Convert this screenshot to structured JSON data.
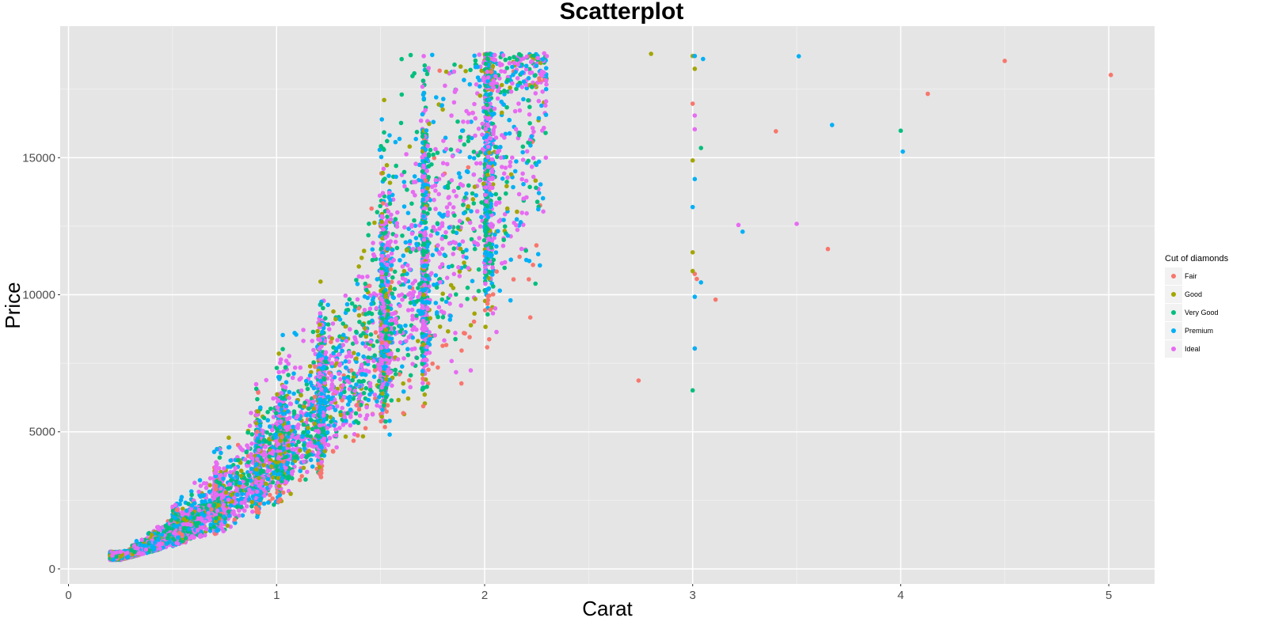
{
  "chart_data": {
    "type": "scatter",
    "title": "Scatterplot",
    "xlabel": "Carat",
    "ylabel": "Price",
    "xlim": [
      -0.04,
      5.22
    ],
    "ylim": [
      -550,
      19800
    ],
    "x_ticks": [
      0,
      1,
      2,
      3,
      4,
      5
    ],
    "y_ticks": [
      0,
      5000,
      10000,
      15000
    ],
    "grid": true,
    "legend": {
      "title": "Cut of diamonds",
      "position": "right",
      "entries": [
        {
          "label": "Fair",
          "color": "#F8766D"
        },
        {
          "label": "Good",
          "color": "#A3A500"
        },
        {
          "label": "Very Good",
          "color": "#00BF7D"
        },
        {
          "label": "Premium",
          "color": "#00B0F6"
        },
        {
          "label": "Ideal",
          "color": "#E76BF3"
        }
      ]
    },
    "series_description": "Diamond price vs carat (~54k points); dense cloud from 0.2 to ~2.3 carat with vertical bands at 0.3, 0.5, 0.7, 0.9, 1.0, 1.2, 1.5, 1.7, 2.0 carats; prices from ~330 to ~18800.",
    "outliers": [
      {
        "cut": "Fair",
        "x": 5.01,
        "y": 18018
      },
      {
        "cut": "Fair",
        "x": 4.5,
        "y": 18531
      },
      {
        "cut": "Fair",
        "x": 4.13,
        "y": 17329
      },
      {
        "cut": "Fair",
        "x": 3.65,
        "y": 11668
      },
      {
        "cut": "Fair",
        "x": 3.4,
        "y": 15964
      },
      {
        "cut": "Fair",
        "x": 3.11,
        "y": 9823
      },
      {
        "cut": "Fair",
        "x": 3.02,
        "y": 10577
      },
      {
        "cut": "Fair",
        "x": 3.01,
        "y": 10761
      },
      {
        "cut": "Fair",
        "x": 3.0,
        "y": 16970
      },
      {
        "cut": "Fair",
        "x": 3.01,
        "y": 8040
      },
      {
        "cut": "Fair",
        "x": 2.74,
        "y": 6870
      },
      {
        "cut": "Good",
        "x": 3.0,
        "y": 18710
      },
      {
        "cut": "Good",
        "x": 3.01,
        "y": 18242
      },
      {
        "cut": "Good",
        "x": 3.0,
        "y": 14900
      },
      {
        "cut": "Good",
        "x": 3.0,
        "y": 11548
      },
      {
        "cut": "Good",
        "x": 3.0,
        "y": 10863
      },
      {
        "cut": "Good",
        "x": 2.8,
        "y": 18788
      },
      {
        "cut": "Very Good",
        "x": 4.0,
        "y": 15984
      },
      {
        "cut": "Very Good",
        "x": 3.04,
        "y": 15354
      },
      {
        "cut": "Very Good",
        "x": 3.0,
        "y": 6512
      },
      {
        "cut": "Premium",
        "x": 4.01,
        "y": 15223
      },
      {
        "cut": "Premium",
        "x": 3.67,
        "y": 16193
      },
      {
        "cut": "Premium",
        "x": 3.51,
        "y": 18701
      },
      {
        "cut": "Premium",
        "x": 3.24,
        "y": 12300
      },
      {
        "cut": "Premium",
        "x": 3.05,
        "y": 18600
      },
      {
        "cut": "Premium",
        "x": 3.01,
        "y": 18710
      },
      {
        "cut": "Premium",
        "x": 3.01,
        "y": 14220
      },
      {
        "cut": "Premium",
        "x": 3.0,
        "y": 13200
      },
      {
        "cut": "Premium",
        "x": 3.01,
        "y": 9925
      },
      {
        "cut": "Premium",
        "x": 3.01,
        "y": 8040
      },
      {
        "cut": "Premium",
        "x": 3.04,
        "y": 10450
      },
      {
        "cut": "Ideal",
        "x": 3.5,
        "y": 12587
      },
      {
        "cut": "Ideal",
        "x": 3.22,
        "y": 12545
      },
      {
        "cut": "Ideal",
        "x": 3.01,
        "y": 16538
      },
      {
        "cut": "Ideal",
        "x": 3.01,
        "y": 16037
      }
    ]
  }
}
